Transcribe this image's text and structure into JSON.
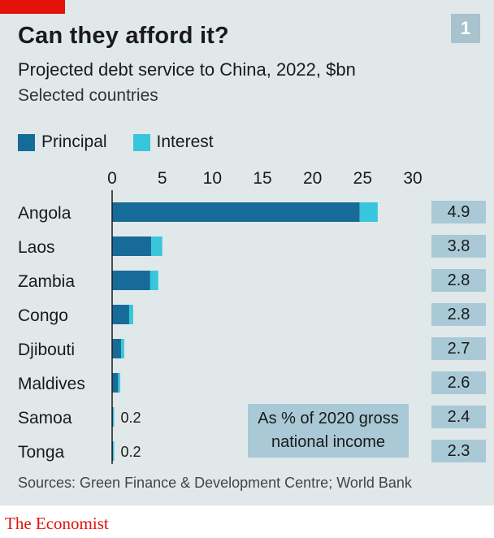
{
  "header": {
    "title": "Can they afford it?",
    "subtitle": "Projected debt service to China, 2022, $bn",
    "note": "Selected countries",
    "chart_number": "1"
  },
  "legend": {
    "principal_label": "Principal",
    "interest_label": "Interest"
  },
  "colors": {
    "principal": "#176b98",
    "interest": "#37c6dc",
    "gdp_box": "#a9c9d6",
    "brand": "#e3120b"
  },
  "gdp_note": "As % of 2020 gross national income",
  "source": "Sources: Green Finance & Development Centre; World Bank",
  "brand": "The Economist",
  "chart_data": {
    "type": "bar",
    "orientation": "horizontal",
    "stacked": true,
    "categories": [
      "Angola",
      "Laos",
      "Zambia",
      "Congo",
      "Djibouti",
      "Maldives",
      "Samoa",
      "Tonga"
    ],
    "series": [
      {
        "name": "Principal",
        "values": [
          24.7,
          3.9,
          3.8,
          1.7,
          0.9,
          0.6,
          0.1,
          0.1
        ]
      },
      {
        "name": "Interest",
        "values": [
          1.8,
          1.1,
          0.8,
          0.4,
          0.3,
          0.2,
          0.1,
          0.1
        ]
      }
    ],
    "bar_labels": [
      "",
      "",
      "",
      "",
      "",
      "",
      "0.2",
      "0.2"
    ],
    "gdp_percent": [
      "4.9",
      "3.8",
      "2.8",
      "2.8",
      "2.7",
      "2.6",
      "2.4",
      "2.3"
    ],
    "xlim": [
      0,
      30
    ],
    "xticks": [
      "0",
      "5",
      "10",
      "15",
      "20",
      "25",
      "30"
    ],
    "tick_values": [
      0,
      5,
      10,
      15,
      20,
      25,
      30
    ],
    "axis_position": "top",
    "grid": false,
    "legend_position": "top-left"
  }
}
